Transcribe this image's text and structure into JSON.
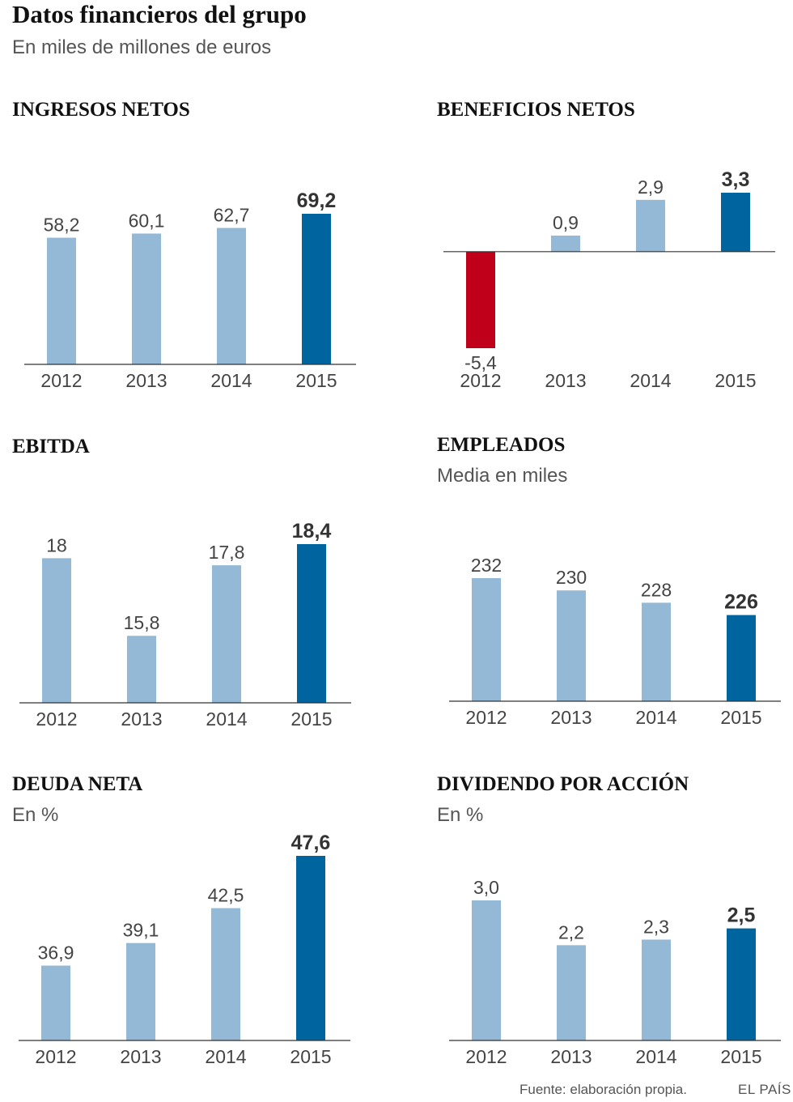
{
  "header": {
    "title": "Datos financieros del grupo",
    "subtitle": "En miles de millones de euros"
  },
  "colors": {
    "bar": "#93b9d6",
    "highlight": "#00659e",
    "negative": "#c0001a",
    "axis": "#333333"
  },
  "footer": {
    "source": "Fuente: elaboración propia.",
    "brand": "EL PAÍS"
  },
  "chart_data": [
    {
      "id": "ingresos",
      "type": "bar",
      "title": "INGRESOS NETOS",
      "subtitle": "",
      "categories": [
        "2012",
        "2013",
        "2014",
        "2015"
      ],
      "values": [
        58.2,
        60.1,
        62.7,
        69.2
      ],
      "labels": [
        "58,2",
        "60,1",
        "62,7",
        "69,2"
      ],
      "highlight_index": 3,
      "ylim": [
        0,
        69.2
      ]
    },
    {
      "id": "beneficios",
      "type": "bar",
      "title": "BENEFICIOS NETOS",
      "subtitle": "",
      "categories": [
        "2012",
        "2013",
        "2014",
        "2015"
      ],
      "values": [
        -5.4,
        0.9,
        2.9,
        3.3
      ],
      "labels": [
        "-5,4",
        "0,9",
        "2,9",
        "3,3"
      ],
      "highlight_index": 3,
      "ylim": [
        -5.4,
        3.3
      ]
    },
    {
      "id": "ebitda",
      "type": "bar",
      "title": "EBITDA",
      "subtitle": "",
      "categories": [
        "2012",
        "2013",
        "2014",
        "2015"
      ],
      "values": [
        18,
        15.8,
        17.8,
        18.4
      ],
      "labels": [
        "18",
        "15,8",
        "17,8",
        "18,4"
      ],
      "highlight_index": 3,
      "ylim": [
        13.9,
        18.4
      ]
    },
    {
      "id": "empleados",
      "type": "bar",
      "title": "EMPLEADOS",
      "subtitle": "Media en miles",
      "categories": [
        "2012",
        "2013",
        "2014",
        "2015"
      ],
      "values": [
        232,
        230,
        228,
        226
      ],
      "labels": [
        "232",
        "230",
        "228",
        "226"
      ],
      "highlight_index": 3,
      "ylim": [
        212,
        232
      ]
    },
    {
      "id": "deuda",
      "type": "bar",
      "title": "DEUDA NETA",
      "subtitle": "En %",
      "categories": [
        "2012",
        "2013",
        "2014",
        "2015"
      ],
      "values": [
        36.9,
        39.1,
        42.5,
        47.6
      ],
      "labels": [
        "36,9",
        "39,1",
        "42,5",
        "47,6"
      ],
      "highlight_index": 3,
      "ylim": [
        29.6,
        47.6
      ]
    },
    {
      "id": "dividendo",
      "type": "bar",
      "title": "DIVIDENDO POR ACCIÓN",
      "subtitle": "En %",
      "categories": [
        "2012",
        "2013",
        "2014",
        "2015"
      ],
      "values": [
        3.0,
        2.2,
        2.3,
        2.5
      ],
      "labels": [
        "3,0",
        "2,2",
        "2,3",
        "2,5"
      ],
      "highlight_index": 3,
      "ylim": [
        0.5,
        3.0
      ]
    }
  ]
}
